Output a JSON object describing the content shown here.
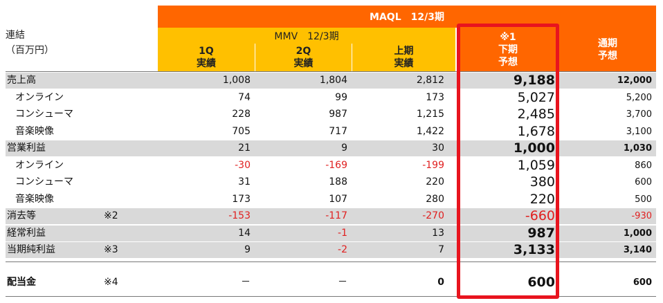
{
  "header": {
    "banner": "MAQL　12/3期",
    "sub_banner": "MMV　12/3期",
    "left_line1": "連結",
    "left_line2": "（百万円）",
    "cols": [
      {
        "line1": "1Q",
        "line2": "実績"
      },
      {
        "line1": "2Q",
        "line2": "実績"
      },
      {
        "line1": "上期",
        "line2": "実績"
      },
      {
        "line0": "※1",
        "line1": "下期",
        "line2": "予想"
      },
      {
        "line1": "通期",
        "line2": "予想"
      }
    ]
  },
  "rows": [
    {
      "label": "売上高",
      "note": "",
      "v1": "1,008",
      "v2": "1,804",
      "v3": "2,812",
      "v4": "9,188",
      "v5": "12,000"
    },
    {
      "label": "オンライン",
      "note": "",
      "v1": "74",
      "v2": "99",
      "v3": "173",
      "v4": "5,027",
      "v5": "5,200"
    },
    {
      "label": "コンシューマ",
      "note": "",
      "v1": "228",
      "v2": "987",
      "v3": "1,215",
      "v4": "2,485",
      "v5": "3,700"
    },
    {
      "label": "音楽映像",
      "note": "",
      "v1": "705",
      "v2": "717",
      "v3": "1,422",
      "v4": "1,678",
      "v5": "3,100"
    },
    {
      "label": "営業利益",
      "note": "",
      "v1": "21",
      "v2": "9",
      "v3": "30",
      "v4": "1,000",
      "v5": "1,030"
    },
    {
      "label": "オンライン",
      "note": "",
      "v1": "-30",
      "v2": "-169",
      "v3": "-199",
      "v4": "1,059",
      "v5": "860"
    },
    {
      "label": "コンシューマ",
      "note": "",
      "v1": "31",
      "v2": "188",
      "v3": "220",
      "v4": "380",
      "v5": "600"
    },
    {
      "label": "音楽映像",
      "note": "",
      "v1": "173",
      "v2": "107",
      "v3": "280",
      "v4": "220",
      "v5": "500"
    },
    {
      "label": "消去等",
      "note": "※2",
      "v1": "-153",
      "v2": "-117",
      "v3": "-270",
      "v4": "-660",
      "v5": "-930"
    },
    {
      "label": "経常利益",
      "note": "",
      "v1": "14",
      "v2": "-1",
      "v3": "13",
      "v4": "987",
      "v5": "1,000"
    },
    {
      "label": "当期純利益",
      "note": "※3",
      "v1": "9",
      "v2": "-2",
      "v3": "7",
      "v4": "3,133",
      "v5": "3,140"
    }
  ],
  "dividend": {
    "label": "配当金",
    "note": "※4",
    "v1": "－",
    "v2": "－",
    "v3": "0",
    "v4": "600",
    "v5": "600"
  },
  "colors": {
    "orange": "#ff6600",
    "yellow": "#ffc000",
    "shade": "#d9d9d9",
    "negative": "#e02020",
    "highlight_box": "#e8141e"
  }
}
